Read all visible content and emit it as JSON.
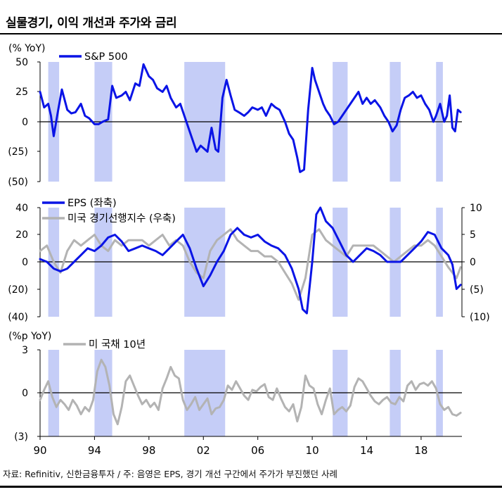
{
  "title": "실물경기, 이익 개선과 주가와 금리",
  "source": "자료: Refinitiv, 신한금융투자  /  주: 음영은 EPS, 경기 개선 구간에서 주가가 부진했던 사례",
  "colors": {
    "blue": "#0a14e6",
    "gray": "#b3b3b3",
    "shade": "#c5cdf7",
    "axis": "#000000"
  },
  "x_ticks": [
    "90",
    "94",
    "98",
    "02",
    "06",
    "10",
    "14",
    "18"
  ],
  "shaded_periods": [
    [
      1990.6,
      1991.4
    ],
    [
      1994.0,
      1995.3
    ],
    [
      2000.6,
      2003.6
    ],
    [
      2011.5,
      2012.6
    ],
    [
      2015.7,
      2016.5
    ],
    [
      2019.1,
      2019.6
    ]
  ],
  "chart_data": [
    {
      "type": "line",
      "unit_label": "(% YoY)",
      "y_ticks": [
        "50",
        "25",
        "0",
        "(25)",
        "(50)"
      ],
      "ylim": [
        -50,
        50
      ],
      "series": [
        {
          "name": "S&P 500",
          "color": "#0a14e6",
          "x": [
            1990.0,
            1990.3,
            1990.6,
            1990.8,
            1991.0,
            1991.3,
            1991.6,
            1992.0,
            1992.3,
            1992.6,
            1993.0,
            1993.3,
            1993.6,
            1994.0,
            1994.3,
            1994.6,
            1995.0,
            1995.3,
            1995.6,
            1996.0,
            1996.3,
            1996.6,
            1997.0,
            1997.3,
            1997.6,
            1998.0,
            1998.3,
            1998.6,
            1999.0,
            1999.3,
            1999.6,
            2000.0,
            2000.3,
            2000.6,
            2000.9,
            2001.2,
            2001.5,
            2001.8,
            2002.0,
            2002.3,
            2002.6,
            2002.9,
            2003.1,
            2003.4,
            2003.7,
            2004.0,
            2004.3,
            2004.6,
            2005.0,
            2005.3,
            2005.6,
            2006.0,
            2006.3,
            2006.6,
            2007.0,
            2007.3,
            2007.6,
            2008.0,
            2008.3,
            2008.6,
            2008.9,
            2009.1,
            2009.4,
            2009.7,
            2010.0,
            2010.2,
            2010.5,
            2010.8,
            2011.0,
            2011.3,
            2011.6,
            2011.9,
            2012.2,
            2012.5,
            2012.8,
            2013.1,
            2013.4,
            2013.7,
            2014.0,
            2014.3,
            2014.6,
            2015.0,
            2015.3,
            2015.6,
            2015.9,
            2016.2,
            2016.5,
            2016.8,
            2017.1,
            2017.4,
            2017.7,
            2018.0,
            2018.3,
            2018.6,
            2018.9,
            2019.1,
            2019.4,
            2019.7,
            2019.9,
            2020.1,
            2020.3,
            2020.5,
            2020.7,
            2020.9
          ],
          "values": [
            25,
            12,
            15,
            5,
            -12,
            8,
            27,
            10,
            7,
            8,
            15,
            5,
            3,
            -2,
            -2,
            0,
            2,
            30,
            20,
            22,
            25,
            18,
            32,
            30,
            48,
            38,
            35,
            28,
            25,
            30,
            20,
            12,
            15,
            5,
            -5,
            -15,
            -25,
            -20,
            -22,
            -25,
            -5,
            -23,
            -25,
            20,
            35,
            22,
            10,
            8,
            5,
            8,
            12,
            10,
            12,
            5,
            15,
            12,
            10,
            0,
            -10,
            -15,
            -30,
            -42,
            -40,
            10,
            45,
            35,
            25,
            15,
            10,
            5,
            -2,
            0,
            5,
            10,
            15,
            20,
            25,
            15,
            20,
            15,
            18,
            12,
            5,
            0,
            -8,
            -3,
            10,
            20,
            22,
            25,
            20,
            22,
            15,
            10,
            0,
            5,
            15,
            0,
            5,
            22,
            -5,
            -8,
            10,
            8
          ]
        }
      ]
    },
    {
      "type": "line",
      "y_ticks_left": [
        "40",
        "20",
        "0",
        "(20)",
        "(40)"
      ],
      "ylim_left": [
        -40,
        40
      ],
      "y_ticks_right": [
        "10",
        "5",
        "0",
        "(5)",
        "(10)"
      ],
      "ylim_right": [
        -10,
        10
      ],
      "series": [
        {
          "name": "EPS (좌축)",
          "axis": "left",
          "color": "#0a14e6",
          "x": [
            1990.0,
            1990.5,
            1991.0,
            1991.5,
            1992.0,
            1992.5,
            1993.0,
            1993.5,
            1994.0,
            1994.5,
            1995.0,
            1995.5,
            1996.0,
            1996.5,
            1997.0,
            1997.5,
            1998.0,
            1998.5,
            1999.0,
            1999.5,
            2000.0,
            2000.5,
            2001.0,
            2001.5,
            2002.0,
            2002.5,
            2003.0,
            2003.5,
            2004.0,
            2004.5,
            2005.0,
            2005.5,
            2006.0,
            2006.5,
            2007.0,
            2007.5,
            2008.0,
            2008.5,
            2009.0,
            2009.3,
            2009.6,
            2010.0,
            2010.3,
            2010.6,
            2011.0,
            2011.5,
            2012.0,
            2012.5,
            2013.0,
            2013.5,
            2014.0,
            2014.5,
            2015.0,
            2015.5,
            2016.0,
            2016.5,
            2017.0,
            2017.5,
            2018.0,
            2018.5,
            2019.0,
            2019.5,
            2020.0,
            2020.3,
            2020.6,
            2020.9
          ],
          "values": [
            2,
            0,
            -5,
            -7,
            -5,
            0,
            5,
            10,
            8,
            12,
            18,
            20,
            15,
            8,
            10,
            12,
            10,
            8,
            5,
            10,
            15,
            20,
            10,
            -5,
            -18,
            -10,
            0,
            8,
            20,
            25,
            20,
            18,
            20,
            15,
            12,
            10,
            5,
            -5,
            -20,
            -35,
            -38,
            0,
            35,
            40,
            30,
            25,
            15,
            5,
            0,
            5,
            10,
            8,
            5,
            0,
            0,
            0,
            5,
            10,
            15,
            22,
            20,
            10,
            5,
            -2,
            -20,
            -17
          ]
        },
        {
          "name": "미국 경기선행지수 (우축)",
          "axis": "right",
          "color": "#b3b3b3",
          "x": [
            1990.0,
            1990.5,
            1991.0,
            1991.5,
            1992.0,
            1992.5,
            1993.0,
            1993.5,
            1994.0,
            1994.5,
            1995.0,
            1995.5,
            1996.0,
            1996.5,
            1997.0,
            1997.5,
            1998.0,
            1998.5,
            1999.0,
            1999.5,
            2000.0,
            2000.5,
            2001.0,
            2001.5,
            2002.0,
            2002.5,
            2003.0,
            2003.5,
            2004.0,
            2004.5,
            2005.0,
            2005.5,
            2006.0,
            2006.5,
            2007.0,
            2007.5,
            2008.0,
            2008.5,
            2009.0,
            2009.5,
            2010.0,
            2010.5,
            2011.0,
            2011.5,
            2012.0,
            2012.5,
            2013.0,
            2013.5,
            2014.0,
            2014.5,
            2015.0,
            2015.5,
            2016.0,
            2016.5,
            2017.0,
            2017.5,
            2018.0,
            2018.5,
            2019.0,
            2019.5,
            2020.0,
            2020.3,
            2020.6,
            2020.9
          ],
          "values": [
            2,
            3,
            0,
            -2,
            2,
            4,
            3,
            4,
            5,
            3,
            2,
            4,
            3,
            4,
            4,
            4,
            3,
            4,
            5,
            3,
            4,
            3,
            0,
            -2,
            -3,
            2,
            4,
            5,
            6,
            4,
            3,
            2,
            2,
            1,
            1,
            0,
            -2,
            -4,
            -7,
            -3,
            5,
            6,
            4,
            3,
            2,
            1,
            3,
            3,
            3,
            3,
            2,
            1,
            0,
            1,
            2,
            3,
            3,
            4,
            3,
            1,
            -1,
            -2,
            -3,
            -1
          ]
        }
      ]
    },
    {
      "type": "line",
      "unit_label": "(%p YoY)",
      "y_ticks": [
        "3",
        "0",
        "(3)"
      ],
      "ylim": [
        -3,
        3
      ],
      "series": [
        {
          "name": "미 국채 10년",
          "color": "#b3b3b3",
          "x": [
            1990.0,
            1990.3,
            1990.6,
            1990.9,
            1991.2,
            1991.5,
            1991.8,
            1992.1,
            1992.4,
            1992.7,
            1993.0,
            1993.3,
            1993.6,
            1993.9,
            1994.2,
            1994.5,
            1994.8,
            1995.1,
            1995.4,
            1995.7,
            1996.0,
            1996.3,
            1996.6,
            1996.9,
            1997.2,
            1997.5,
            1997.8,
            1998.1,
            1998.4,
            1998.7,
            1999.0,
            1999.3,
            1999.6,
            1999.9,
            2000.2,
            2000.5,
            2000.8,
            2001.1,
            2001.4,
            2001.7,
            2002.0,
            2002.3,
            2002.6,
            2002.9,
            2003.2,
            2003.5,
            2003.8,
            2004.1,
            2004.4,
            2004.7,
            2005.0,
            2005.3,
            2005.6,
            2005.9,
            2006.2,
            2006.5,
            2006.8,
            2007.1,
            2007.4,
            2007.7,
            2008.0,
            2008.3,
            2008.6,
            2008.9,
            2009.2,
            2009.5,
            2009.8,
            2010.1,
            2010.4,
            2010.7,
            2011.0,
            2011.3,
            2011.6,
            2011.9,
            2012.2,
            2012.5,
            2012.8,
            2013.1,
            2013.4,
            2013.7,
            2014.0,
            2014.3,
            2014.6,
            2014.9,
            2015.2,
            2015.5,
            2015.8,
            2016.1,
            2016.4,
            2016.7,
            2017.0,
            2017.3,
            2017.6,
            2017.9,
            2018.2,
            2018.5,
            2018.8,
            2019.1,
            2019.4,
            2019.7,
            2020.0,
            2020.3,
            2020.6,
            2020.9
          ],
          "values": [
            -0.5,
            0.2,
            0.8,
            -0.3,
            -1.0,
            -0.5,
            -0.8,
            -1.2,
            -0.5,
            -0.9,
            -1.5,
            -1.0,
            -1.3,
            -0.5,
            1.5,
            2.3,
            1.8,
            0.5,
            -1.5,
            -2.2,
            -1.0,
            0.8,
            1.2,
            0.5,
            -0.2,
            -0.8,
            -0.5,
            -1.0,
            -0.7,
            -1.2,
            0.3,
            1.0,
            1.8,
            1.2,
            1.0,
            -0.5,
            -1.2,
            -0.8,
            -0.3,
            -1.2,
            -0.8,
            -0.4,
            -1.5,
            -1.1,
            -1.0,
            -0.5,
            0.5,
            0.2,
            0.8,
            0.3,
            -0.2,
            -0.5,
            0.2,
            0.1,
            0.4,
            0.6,
            -0.3,
            -0.5,
            0.3,
            -0.4,
            -1.0,
            -1.3,
            -0.8,
            -2.0,
            -1.0,
            1.2,
            0.5,
            0.3,
            -0.8,
            -1.5,
            -0.5,
            0.3,
            -1.5,
            -1.2,
            -1.0,
            -1.3,
            -0.9,
            0.4,
            1.0,
            0.8,
            0.3,
            -0.2,
            -0.6,
            -0.8,
            -0.5,
            -0.3,
            -0.7,
            -0.8,
            -0.3,
            -0.6,
            0.5,
            0.8,
            0.2,
            0.6,
            0.7,
            0.5,
            0.8,
            0.3,
            -0.8,
            -1.2,
            -1.0,
            -1.5,
            -1.6,
            -1.4
          ]
        }
      ]
    }
  ]
}
